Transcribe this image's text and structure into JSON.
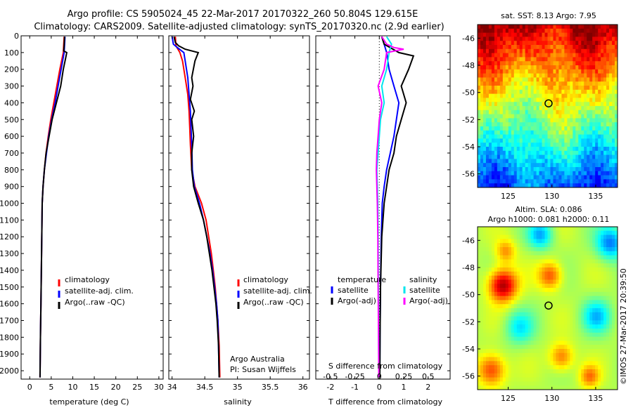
{
  "header": {
    "line1": "Argo profile: CS 5905024_45 22-Mar-2017 20170322_260 50.804S 129.615E",
    "line2": "Climatology: CARS2009. Satellite-adjusted climatology: synTS_20170320.nc (2.9d earlier)"
  },
  "colors": {
    "climatology": "#ff0000",
    "satellite": "#0000ff",
    "argo": "#000000",
    "temp_satellite": "#0000ff",
    "sal_satellite": "#00e5ee",
    "sal_argo": "#ff00ff"
  },
  "panel_temperature": {
    "xlabel": "temperature (deg C)",
    "legend": [
      "climatology",
      "satellite-adj. clim.",
      "Argo(..raw -QC)"
    ]
  },
  "panel_salinity": {
    "xlabel": "salinity",
    "legend": [
      "climatology",
      "satellite-adj. clim.",
      "Argo(..raw -QC)"
    ],
    "credit1": "Argo Australia",
    "credit2": "PI: Susan Wijffels"
  },
  "panel_difference": {
    "xlabel": "T difference from climatology",
    "toplabel": "S difference from climatology",
    "legend_temp_title": "temperature",
    "legend_temp": [
      "satellite",
      "Argo(-adj)"
    ],
    "legend_sal_title": "salinity",
    "legend_sal": [
      "satellite",
      "Argo(-adj)"
    ]
  },
  "map_sst": {
    "title": "sat. SST: 8.13 Argo: 7.95"
  },
  "map_sla": {
    "title1": "Altim. SLA: 0.086",
    "title2": "Argo h1000: 0.081 h2000: 0.11",
    "credit": "©IMOS 27-Mar-2017 20:39:50"
  },
  "chart_data": [
    {
      "type": "line",
      "title": "",
      "xlabel": "temperature (deg C)",
      "ylabel": "",
      "xlim": [
        -2,
        31
      ],
      "ylim": [
        2050,
        0
      ],
      "xticks": [
        0,
        5,
        10,
        15,
        20,
        25,
        30
      ],
      "yticks": [
        0,
        100,
        200,
        300,
        400,
        500,
        600,
        700,
        800,
        900,
        1000,
        1100,
        1200,
        1300,
        1400,
        1500,
        1600,
        1700,
        1800,
        1900,
        2000
      ],
      "series": [
        {
          "name": "climatology",
          "color": "#ff0000",
          "points": [
            [
              8.0,
              5
            ],
            [
              7.8,
              100
            ],
            [
              7.0,
              200
            ],
            [
              6.3,
              300
            ],
            [
              5.6,
              400
            ],
            [
              4.9,
              500
            ],
            [
              4.3,
              600
            ],
            [
              3.8,
              700
            ],
            [
              3.4,
              800
            ],
            [
              3.1,
              900
            ],
            [
              2.9,
              1000
            ],
            [
              2.8,
              1200
            ],
            [
              2.7,
              1400
            ],
            [
              2.6,
              1600
            ],
            [
              2.5,
              1800
            ],
            [
              2.4,
              2040
            ]
          ]
        },
        {
          "name": "satellite-adj. clim.",
          "color": "#0000ff",
          "points": [
            [
              8.2,
              5
            ],
            [
              8.0,
              100
            ],
            [
              7.3,
              200
            ],
            [
              6.6,
              300
            ],
            [
              5.9,
              400
            ],
            [
              5.1,
              500
            ],
            [
              4.4,
              600
            ],
            [
              3.9,
              700
            ],
            [
              3.4,
              800
            ],
            [
              3.1,
              900
            ],
            [
              2.9,
              1000
            ],
            [
              2.8,
              1200
            ],
            [
              2.7,
              1400
            ],
            [
              2.6,
              1600
            ],
            [
              2.5,
              1800
            ],
            [
              2.4,
              2040
            ]
          ]
        },
        {
          "name": "Argo(..raw -QC)",
          "color": "#000000",
          "points": [
            [
              8.1,
              5
            ],
            [
              8.0,
              60
            ],
            [
              7.9,
              90
            ],
            [
              8.6,
              100
            ],
            [
              8.3,
              140
            ],
            [
              7.8,
              200
            ],
            [
              7.2,
              300
            ],
            [
              6.2,
              400
            ],
            [
              5.2,
              500
            ],
            [
              4.5,
              600
            ],
            [
              3.8,
              700
            ],
            [
              3.4,
              800
            ],
            [
              3.1,
              900
            ],
            [
              2.9,
              1000
            ],
            [
              2.8,
              1200
            ],
            [
              2.7,
              1400
            ],
            [
              2.6,
              1600
            ],
            [
              2.5,
              1800
            ],
            [
              2.4,
              2040
            ]
          ]
        }
      ]
    },
    {
      "type": "line",
      "title": "",
      "xlabel": "salinity",
      "ylabel": "",
      "xlim": [
        33.95,
        36.1
      ],
      "ylim": [
        2050,
        0
      ],
      "xticks": [
        34,
        34.5,
        35,
        35.5,
        36
      ],
      "series": [
        {
          "name": "climatology",
          "color": "#ff0000",
          "points": [
            [
              34.05,
              5
            ],
            [
              34.06,
              60
            ],
            [
              34.12,
              100
            ],
            [
              34.16,
              150
            ],
            [
              34.2,
              250
            ],
            [
              34.24,
              350
            ],
            [
              34.26,
              450
            ],
            [
              34.27,
              550
            ],
            [
              34.28,
              650
            ],
            [
              34.3,
              800
            ],
            [
              34.35,
              900
            ],
            [
              34.45,
              1000
            ],
            [
              34.52,
              1100
            ],
            [
              34.56,
              1200
            ],
            [
              34.6,
              1300
            ],
            [
              34.63,
              1400
            ],
            [
              34.66,
              1500
            ],
            [
              34.68,
              1600
            ],
            [
              34.7,
              1700
            ],
            [
              34.72,
              1850
            ],
            [
              34.73,
              2040
            ]
          ]
        },
        {
          "name": "satellite-adj. clim.",
          "color": "#0000ff",
          "points": [
            [
              34.0,
              5
            ],
            [
              34.02,
              50
            ],
            [
              34.08,
              70
            ],
            [
              34.18,
              100
            ],
            [
              34.2,
              150
            ],
            [
              34.24,
              250
            ],
            [
              34.26,
              350
            ],
            [
              34.28,
              450
            ],
            [
              34.29,
              550
            ],
            [
              34.3,
              650
            ],
            [
              34.31,
              800
            ],
            [
              34.34,
              900
            ],
            [
              34.42,
              1000
            ],
            [
              34.48,
              1100
            ],
            [
              34.53,
              1200
            ],
            [
              34.58,
              1300
            ],
            [
              34.62,
              1400
            ],
            [
              34.65,
              1500
            ],
            [
              34.68,
              1600
            ],
            [
              34.7,
              1700
            ],
            [
              34.71,
              1850
            ],
            [
              34.72,
              2040
            ]
          ]
        },
        {
          "name": "Argo(..raw -QC)",
          "color": "#000000",
          "points": [
            [
              34.03,
              5
            ],
            [
              34.05,
              40
            ],
            [
              34.1,
              60
            ],
            [
              34.2,
              80
            ],
            [
              34.4,
              100
            ],
            [
              34.35,
              150
            ],
            [
              34.3,
              250
            ],
            [
              34.32,
              300
            ],
            [
              34.28,
              380
            ],
            [
              34.34,
              450
            ],
            [
              34.3,
              500
            ],
            [
              34.33,
              600
            ],
            [
              34.3,
              700
            ],
            [
              34.3,
              800
            ],
            [
              34.33,
              900
            ],
            [
              34.4,
              1000
            ],
            [
              34.48,
              1100
            ],
            [
              34.53,
              1200
            ],
            [
              34.57,
              1300
            ],
            [
              34.61,
              1400
            ],
            [
              34.64,
              1500
            ],
            [
              34.67,
              1600
            ],
            [
              34.69,
              1700
            ],
            [
              34.71,
              1850
            ],
            [
              34.72,
              2040
            ]
          ]
        }
      ]
    },
    {
      "type": "line",
      "title": "",
      "xlabel": "T difference from climatology",
      "ylabel": "",
      "xlim": [
        -2.6,
        2.9
      ],
      "ylim": [
        2050,
        0
      ],
      "xticks": [
        -2,
        -1,
        0,
        1,
        2
      ],
      "xticks_top_labels": [
        "-0.5",
        "-0.25",
        "0",
        "0.25",
        "0.5"
      ],
      "series": [
        {
          "name": "temperature satellite",
          "color": "#0000ff",
          "points": [
            [
              0.1,
              5
            ],
            [
              0.2,
              50
            ],
            [
              0.3,
              100
            ],
            [
              0.4,
              200
            ],
            [
              0.6,
              300
            ],
            [
              0.8,
              400
            ],
            [
              0.7,
              500
            ],
            [
              0.6,
              600
            ],
            [
              0.45,
              700
            ],
            [
              0.3,
              800
            ],
            [
              0.2,
              900
            ],
            [
              0.12,
              1000
            ],
            [
              0.08,
              1200
            ],
            [
              0.05,
              1500
            ],
            [
              0.03,
              1800
            ],
            [
              0.02,
              2040
            ]
          ]
        },
        {
          "name": "temperature Argo(-adj)",
          "color": "#000000",
          "points": [
            [
              0.1,
              5
            ],
            [
              0.2,
              50
            ],
            [
              0.8,
              100
            ],
            [
              1.4,
              120
            ],
            [
              1.2,
              200
            ],
            [
              0.9,
              300
            ],
            [
              1.1,
              400
            ],
            [
              0.9,
              500
            ],
            [
              0.7,
              600
            ],
            [
              0.6,
              700
            ],
            [
              0.4,
              800
            ],
            [
              0.3,
              900
            ],
            [
              0.2,
              1000
            ],
            [
              0.1,
              1200
            ],
            [
              0.05,
              1500
            ],
            [
              0.03,
              1800
            ],
            [
              0.02,
              2040
            ]
          ]
        },
        {
          "name": "salinity satellite",
          "color": "#00e5ee",
          "points": [
            [
              0.3,
              5
            ],
            [
              0.5,
              50
            ],
            [
              0.4,
              100
            ],
            [
              0.3,
              200
            ],
            [
              0.1,
              300
            ],
            [
              0.2,
              400
            ],
            [
              0.05,
              500
            ],
            [
              0.0,
              600
            ],
            [
              -0.05,
              700
            ],
            [
              -0.1,
              800
            ],
            [
              -0.08,
              900
            ],
            [
              -0.06,
              1000
            ],
            [
              -0.05,
              1200
            ],
            [
              -0.04,
              1500
            ],
            [
              -0.03,
              1800
            ],
            [
              -0.02,
              2040
            ]
          ]
        },
        {
          "name": "salinity Argo(-adj)",
          "color": "#ff00ff",
          "points": [
            [
              0.1,
              5
            ],
            [
              0.3,
              50
            ],
            [
              0.6,
              70
            ],
            [
              1.0,
              80
            ],
            [
              0.3,
              100
            ],
            [
              0.2,
              200
            ],
            [
              -0.05,
              300
            ],
            [
              0.1,
              400
            ],
            [
              0.0,
              500
            ],
            [
              -0.05,
              600
            ],
            [
              -0.1,
              700
            ],
            [
              -0.12,
              800
            ],
            [
              -0.1,
              900
            ],
            [
              -0.08,
              1000
            ],
            [
              -0.06,
              1200
            ],
            [
              -0.05,
              1500
            ],
            [
              -0.03,
              1800
            ],
            [
              -0.02,
              2040
            ]
          ]
        }
      ]
    },
    {
      "type": "heatmap",
      "title": "sat. SST: 8.13 Argo: 7.95",
      "xlim": [
        121.5,
        137.5
      ],
      "ylim": [
        -57,
        -45
      ],
      "xticks": [
        125,
        130,
        135
      ],
      "yticks": [
        -46,
        -48,
        -50,
        -52,
        -54,
        -56
      ],
      "marker": {
        "lon": 129.615,
        "lat": -50.804
      }
    },
    {
      "type": "heatmap",
      "title": "Altim. SLA: 0.086",
      "xlim": [
        121.5,
        137.5
      ],
      "ylim": [
        -57,
        -45
      ],
      "xticks": [
        125,
        130,
        135
      ],
      "yticks": [
        -46,
        -48,
        -50,
        -52,
        -54,
        -56
      ],
      "marker": {
        "lon": 129.615,
        "lat": -50.804
      }
    }
  ]
}
